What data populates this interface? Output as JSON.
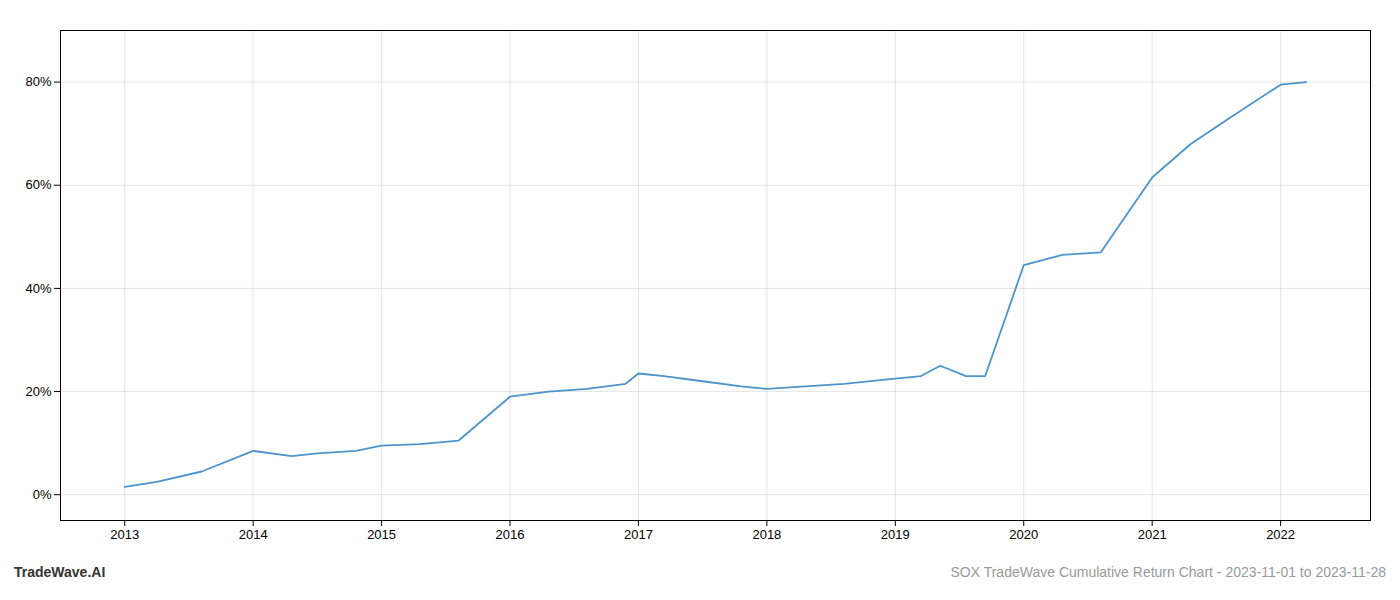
{
  "chart_data": {
    "type": "line",
    "title": "SOX TradeWave Cumulative Return Chart - 2023-11-01 to 2023-11-28",
    "annotations": [
      "TradeWave.AI"
    ],
    "x": [
      2013.0,
      2013.25,
      2013.6,
      2014.0,
      2014.3,
      2014.5,
      2014.8,
      2015.0,
      2015.3,
      2015.6,
      2016.0,
      2016.3,
      2016.6,
      2016.9,
      2017.0,
      2017.2,
      2017.5,
      2017.8,
      2018.0,
      2018.3,
      2018.6,
      2019.0,
      2019.2,
      2019.35,
      2019.55,
      2019.7,
      2020.0,
      2020.3,
      2020.6,
      2021.0,
      2021.3,
      2021.6,
      2022.0,
      2022.2
    ],
    "values": [
      1.5,
      2.5,
      4.5,
      8.5,
      7.5,
      8.0,
      8.5,
      9.5,
      9.8,
      10.5,
      19.0,
      20.0,
      20.5,
      21.5,
      23.5,
      23.0,
      22.0,
      21.0,
      20.5,
      21.0,
      21.5,
      22.5,
      23.0,
      25.0,
      23.0,
      23.0,
      44.5,
      46.5,
      47.0,
      61.5,
      68.0,
      73.0,
      79.5,
      80.0
    ],
    "color": "#4d94cc",
    "xlim": [
      2012.5,
      2022.7
    ],
    "ylim": [
      -5,
      90
    ],
    "xticks": [
      2013,
      2014,
      2015,
      2016,
      2017,
      2018,
      2019,
      2020,
      2021,
      2022
    ],
    "yticks": [
      {
        "value": 0,
        "label": "0%"
      },
      {
        "value": 20,
        "label": "20%"
      },
      {
        "value": 40,
        "label": "40%"
      },
      {
        "value": 60,
        "label": "60%"
      },
      {
        "value": 80,
        "label": "80%"
      }
    ],
    "grid": true
  }
}
